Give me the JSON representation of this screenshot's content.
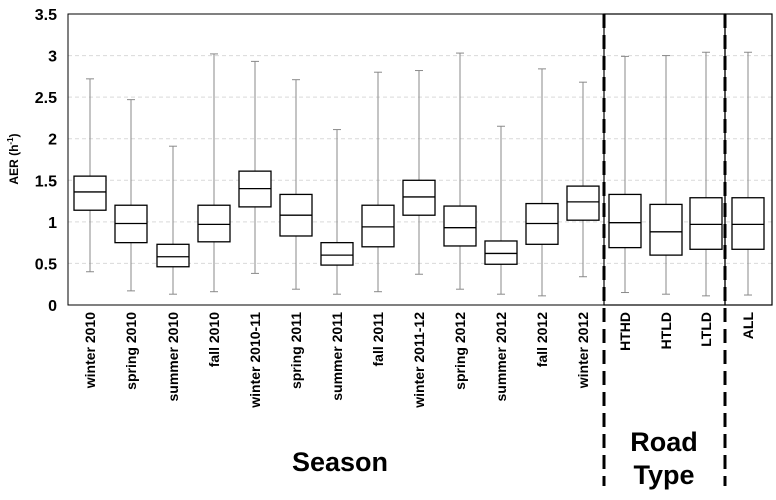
{
  "chart_data": {
    "type": "boxplot",
    "ylabel": "AER (h",
    "ylabel_sup": "-1",
    "ylabel_close": ")",
    "ylim": [
      0,
      3.5
    ],
    "yticks": [
      "0",
      "0.5",
      "1",
      "1.5",
      "2",
      "2.5",
      "3",
      "3.5"
    ],
    "grid": true,
    "groups": [
      {
        "title": "Season",
        "lines": [
          "Season"
        ]
      },
      {
        "title": "Road Type",
        "lines": [
          "Road",
          "Type"
        ]
      }
    ],
    "boxes": [
      {
        "label": "winter 2010",
        "group": 0,
        "min": 0.4,
        "q1": 1.14,
        "median": 1.36,
        "q3": 1.55,
        "max": 2.72
      },
      {
        "label": "spring 2010",
        "group": 0,
        "min": 0.17,
        "q1": 0.75,
        "median": 0.98,
        "q3": 1.2,
        "max": 2.47
      },
      {
        "label": "summer 2010",
        "group": 0,
        "min": 0.13,
        "q1": 0.46,
        "median": 0.58,
        "q3": 0.73,
        "max": 1.91
      },
      {
        "label": "fall 2010",
        "group": 0,
        "min": 0.16,
        "q1": 0.76,
        "median": 0.97,
        "q3": 1.2,
        "max": 3.02
      },
      {
        "label": "winter 2010-11",
        "group": 0,
        "min": 0.38,
        "q1": 1.18,
        "median": 1.4,
        "q3": 1.61,
        "max": 2.93
      },
      {
        "label": "spring 2011",
        "group": 0,
        "min": 0.19,
        "q1": 0.83,
        "median": 1.08,
        "q3": 1.33,
        "max": 2.71
      },
      {
        "label": "summer 2011",
        "group": 0,
        "min": 0.13,
        "q1": 0.48,
        "median": 0.6,
        "q3": 0.75,
        "max": 2.11
      },
      {
        "label": "fall 2011",
        "group": 0,
        "min": 0.16,
        "q1": 0.7,
        "median": 0.94,
        "q3": 1.2,
        "max": 2.8
      },
      {
        "label": "winter 2011-12",
        "group": 0,
        "min": 0.37,
        "q1": 1.08,
        "median": 1.3,
        "q3": 1.5,
        "max": 2.82
      },
      {
        "label": "spring 2012",
        "group": 0,
        "min": 0.19,
        "q1": 0.71,
        "median": 0.93,
        "q3": 1.19,
        "max": 3.03
      },
      {
        "label": "summer 2012",
        "group": 0,
        "min": 0.13,
        "q1": 0.49,
        "median": 0.62,
        "q3": 0.77,
        "max": 2.15
      },
      {
        "label": "fall 2012",
        "group": 0,
        "min": 0.11,
        "q1": 0.73,
        "median": 0.98,
        "q3": 1.22,
        "max": 2.84
      },
      {
        "label": "winter 2012",
        "group": 0,
        "min": 0.34,
        "q1": 1.02,
        "median": 1.24,
        "q3": 1.43,
        "max": 2.68
      },
      {
        "label": "HTHD",
        "group": 1,
        "min": 0.15,
        "q1": 0.69,
        "median": 0.99,
        "q3": 1.33,
        "max": 2.99
      },
      {
        "label": "HTLD",
        "group": 1,
        "min": 0.13,
        "q1": 0.6,
        "median": 0.88,
        "q3": 1.21,
        "max": 3.0
      },
      {
        "label": "LTLD",
        "group": 1,
        "min": 0.11,
        "q1": 0.67,
        "median": 0.97,
        "q3": 1.29,
        "max": 3.04
      },
      {
        "label": "ALL",
        "group": 2,
        "min": 0.12,
        "q1": 0.67,
        "median": 0.97,
        "q3": 1.29,
        "max": 3.04
      }
    ]
  }
}
